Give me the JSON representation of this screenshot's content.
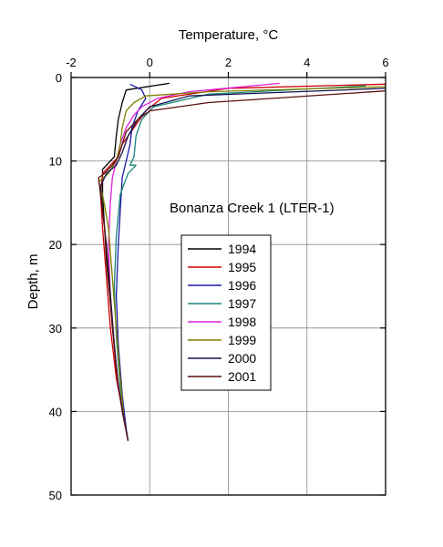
{
  "chart_data": {
    "type": "line",
    "title": "",
    "xlabel": "Temperature, °C",
    "ylabel": "Depth, m",
    "xlim": [
      -2,
      6
    ],
    "ylim": [
      50,
      0
    ],
    "y_inverted": true,
    "x_axis_position": "top",
    "xticks": [
      -2,
      0,
      2,
      4,
      6
    ],
    "yticks": [
      0,
      10,
      20,
      30,
      40,
      50
    ],
    "grid": true,
    "annotation": "Bonanza Creek 1 (LTER-1)",
    "legend_position": "center",
    "series": [
      {
        "name": "1994",
        "color": "#000000",
        "points": [
          [
            0.5,
            0.7
          ],
          [
            -0.6,
            1.5
          ],
          [
            -0.7,
            3
          ],
          [
            -0.8,
            5
          ],
          [
            -0.85,
            7
          ],
          [
            -0.9,
            9.5
          ],
          [
            -1.2,
            11
          ],
          [
            -1.2,
            14
          ],
          [
            -1.15,
            18
          ],
          [
            -1.1,
            22
          ],
          [
            -1.0,
            27
          ],
          [
            -0.9,
            32
          ],
          [
            -0.8,
            37
          ],
          [
            -0.65,
            41
          ],
          [
            -0.55,
            43.5
          ]
        ]
      },
      {
        "name": "1995",
        "color": "#cc0000",
        "points": [
          [
            6,
            0.8
          ],
          [
            2,
            1.3
          ],
          [
            0.3,
            2.5
          ],
          [
            -0.1,
            4
          ],
          [
            -0.4,
            6
          ],
          [
            -0.7,
            8
          ],
          [
            -0.8,
            9.5
          ],
          [
            -1.0,
            10.5
          ],
          [
            -1.2,
            11.5
          ],
          [
            -1.25,
            14
          ],
          [
            -1.2,
            18
          ],
          [
            -1.1,
            24
          ],
          [
            -1.0,
            30
          ],
          [
            -0.85,
            36
          ],
          [
            -0.65,
            41
          ],
          [
            -0.55,
            43.5
          ]
        ]
      },
      {
        "name": "1996",
        "color": "#1a1aa6",
        "points": [
          [
            -0.5,
            0.8
          ],
          [
            -0.2,
            1.5
          ],
          [
            -0.1,
            2.5
          ],
          [
            -0.3,
            4
          ],
          [
            -0.45,
            6
          ],
          [
            -0.5,
            8
          ],
          [
            -0.6,
            10
          ],
          [
            -0.7,
            12
          ],
          [
            -0.75,
            16
          ],
          [
            -0.8,
            20
          ],
          [
            -0.85,
            26
          ],
          [
            -0.8,
            32
          ],
          [
            -0.7,
            38
          ],
          [
            -0.6,
            42
          ],
          [
            -0.55,
            43.5
          ]
        ]
      },
      {
        "name": "1997",
        "color": "#17877a",
        "points": [
          [
            5.5,
            1
          ],
          [
            1.5,
            2
          ],
          [
            0.1,
            3.5
          ],
          [
            -0.2,
            5
          ],
          [
            -0.35,
            7
          ],
          [
            -0.4,
            9.5
          ],
          [
            -0.5,
            10.5
          ],
          [
            -0.35,
            10.5
          ],
          [
            -0.55,
            11.5
          ],
          [
            -0.75,
            14
          ],
          [
            -0.85,
            19
          ],
          [
            -0.9,
            25
          ],
          [
            -0.85,
            31
          ],
          [
            -0.75,
            37
          ],
          [
            -0.65,
            41
          ],
          [
            -0.55,
            43.5
          ]
        ]
      },
      {
        "name": "1998",
        "color": "#e020e0",
        "points": [
          [
            3.3,
            0.7
          ],
          [
            1,
            1.7
          ],
          [
            0.2,
            2.5
          ],
          [
            -0.2,
            3.5
          ],
          [
            -0.4,
            4.5
          ],
          [
            -0.6,
            6
          ],
          [
            -0.75,
            8
          ],
          [
            -0.85,
            10
          ],
          [
            -0.95,
            12
          ],
          [
            -1.0,
            15
          ],
          [
            -1.05,
            20
          ],
          [
            -1.0,
            26
          ],
          [
            -0.9,
            32
          ],
          [
            -0.8,
            37
          ],
          [
            -0.65,
            41
          ],
          [
            -0.55,
            43.5
          ]
        ]
      },
      {
        "name": "1999",
        "color": "#808000",
        "points": [
          [
            6,
            1.1
          ],
          [
            1.5,
            1.7
          ],
          [
            -0.1,
            2.2
          ],
          [
            -0.4,
            3
          ],
          [
            -0.6,
            4
          ],
          [
            -0.7,
            6
          ],
          [
            -0.75,
            8
          ],
          [
            -0.85,
            10
          ],
          [
            -1.05,
            11.5
          ],
          [
            -1.3,
            12.5
          ],
          [
            -1.2,
            14
          ],
          [
            -1.05,
            18
          ],
          [
            -0.95,
            24
          ],
          [
            -0.85,
            30
          ],
          [
            -0.75,
            36
          ],
          [
            -0.65,
            41
          ],
          [
            -0.55,
            43.5
          ]
        ]
      },
      {
        "name": "2000",
        "color": "#141450",
        "points": [
          [
            6,
            1.3
          ],
          [
            1,
            2.2
          ],
          [
            0,
            3.5
          ],
          [
            -0.3,
            5
          ],
          [
            -0.55,
            7
          ],
          [
            -0.7,
            9
          ],
          [
            -0.85,
            10.5
          ],
          [
            -1.1,
            11.5
          ],
          [
            -1.25,
            13
          ],
          [
            -1.2,
            16
          ],
          [
            -1.1,
            20
          ],
          [
            -1.0,
            26
          ],
          [
            -0.9,
            32
          ],
          [
            -0.8,
            37
          ],
          [
            -0.65,
            41
          ],
          [
            -0.55,
            43.5
          ]
        ]
      },
      {
        "name": "2001",
        "color": "#5a1010",
        "points": [
          [
            6,
            1.6
          ],
          [
            1.5,
            3
          ],
          [
            0,
            4
          ],
          [
            -0.3,
            5
          ],
          [
            -0.6,
            6.5
          ],
          [
            -0.7,
            8
          ],
          [
            -0.8,
            9.5
          ],
          [
            -0.95,
            10.5
          ],
          [
            -1.15,
            11.5
          ],
          [
            -1.3,
            12
          ],
          [
            -1.25,
            14
          ],
          [
            -1.15,
            18
          ],
          [
            -1.05,
            24
          ],
          [
            -0.95,
            30
          ],
          [
            -0.85,
            35
          ],
          [
            -0.7,
            40
          ],
          [
            -0.55,
            43.5
          ]
        ]
      }
    ]
  }
}
